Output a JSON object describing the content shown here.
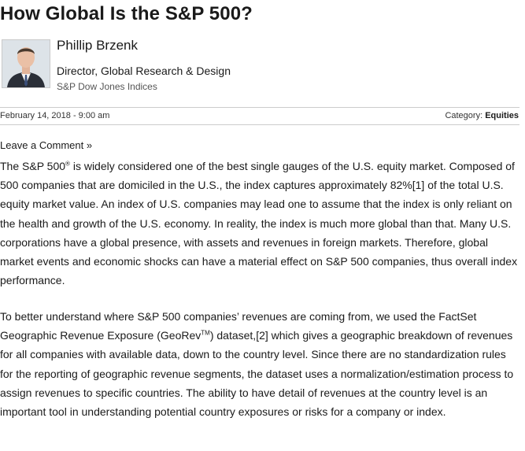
{
  "article": {
    "title": "How Global Is the S&P 500?",
    "author": {
      "name": "Phillip Brzenk",
      "role": "Director, Global Research & Design",
      "organization": "S&P Dow Jones Indices"
    },
    "date": "February 14, 2018 - 9:00 am",
    "category_label": "Category:",
    "category_value": "Equities",
    "leave_comment": "Leave a Comment »",
    "paragraph1": {
      "part_a": "The S&P 500",
      "sup_a": "®",
      "part_b": " is widely considered one of the best single gauges of the U.S. equity market. Composed of 500 companies that are domiciled in the U.S., the index captures approximately 82%[1] of the total U.S. equity market value. An index of U.S. companies may lead one to assume that the index is only reliant on the health and growth of the U.S. economy. In reality, the index is much more global than that. Many U.S. corporations have a global presence, with assets and revenues in foreign markets. Therefore, global market events and economic shocks can have a material effect on S&P 500 companies, thus overall index performance."
    },
    "paragraph2": {
      "part_a": "To better understand where S&P 500 companies’ revenues are coming from, we used the FactSet Geographic Revenue Exposure (GeoRev",
      "sup_a": "TM",
      "part_b": ") dataset,[2] which gives a geographic breakdown of revenues for all companies with available data, down to the country level. Since there are no standardization rules for the reporting of geographic revenue segments, the dataset uses a normalization/estimation process to assign revenues to specific countries. The ability to have detail of revenues at the country level is an important tool in understanding potential country exposures or risks for a company or index."
    }
  }
}
